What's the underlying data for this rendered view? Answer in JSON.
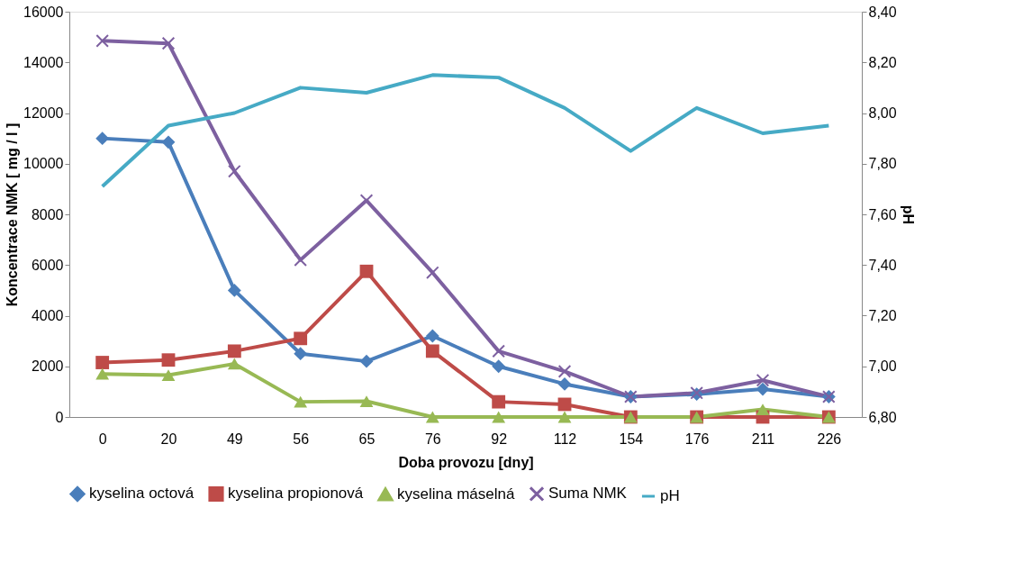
{
  "chart_data": {
    "type": "line",
    "xlabel": "Doba provozu [dny]",
    "ylabel": "Koncentrace NMK [ mg / l ]",
    "y2label": "pH",
    "categories": [
      "0",
      "20",
      "49",
      "56",
      "65",
      "76",
      "92",
      "112",
      "154",
      "176",
      "211",
      "226"
    ],
    "ylim": [
      0,
      16000
    ],
    "yticks": [
      0,
      2000,
      4000,
      6000,
      8000,
      10000,
      12000,
      14000,
      16000
    ],
    "y2lim": [
      6.8,
      8.4
    ],
    "y2ticks": [
      {
        "value": 6.8,
        "label": "6,80"
      },
      {
        "value": 7.0,
        "label": "7,00"
      },
      {
        "value": 7.2,
        "label": "7,20"
      },
      {
        "value": 7.4,
        "label": "7,40"
      },
      {
        "value": 7.6,
        "label": "7,60"
      },
      {
        "value": 7.8,
        "label": "7,80"
      },
      {
        "value": 8.0,
        "label": "8,00"
      },
      {
        "value": 8.2,
        "label": "8,20"
      },
      {
        "value": 8.4,
        "label": "8,40"
      }
    ],
    "grid": false,
    "legend": "bottom",
    "series": [
      {
        "name": "kyselina octová",
        "color": "#4a7ebb",
        "marker": "diamond",
        "values": [
          11000,
          10850,
          5000,
          2500,
          2200,
          3200,
          2000,
          1300,
          800,
          900,
          1100,
          800
        ]
      },
      {
        "name": "kyselina propionová",
        "color": "#be4b48",
        "marker": "square",
        "values": [
          2150,
          2250,
          2600,
          3100,
          5750,
          2600,
          600,
          500,
          0,
          0,
          0,
          0
        ]
      },
      {
        "name": "kyselina máselná",
        "color": "#98b954",
        "marker": "triangle",
        "values": [
          1700,
          1650,
          2100,
          600,
          620,
          0,
          0,
          0,
          0,
          0,
          300,
          0
        ]
      },
      {
        "name": "Suma NMK",
        "color": "#7d60a0",
        "marker": "cross",
        "values": [
          14850,
          14750,
          9700,
          6200,
          8550,
          5700,
          2600,
          1800,
          800,
          950,
          1450,
          800
        ]
      },
      {
        "name": "pH",
        "color": "#46aac5",
        "marker": "none",
        "axis": "y2",
        "values": [
          7.71,
          7.95,
          8.0,
          8.1,
          8.08,
          8.15,
          8.14,
          8.02,
          7.85,
          8.02,
          7.92,
          7.95
        ]
      }
    ]
  }
}
